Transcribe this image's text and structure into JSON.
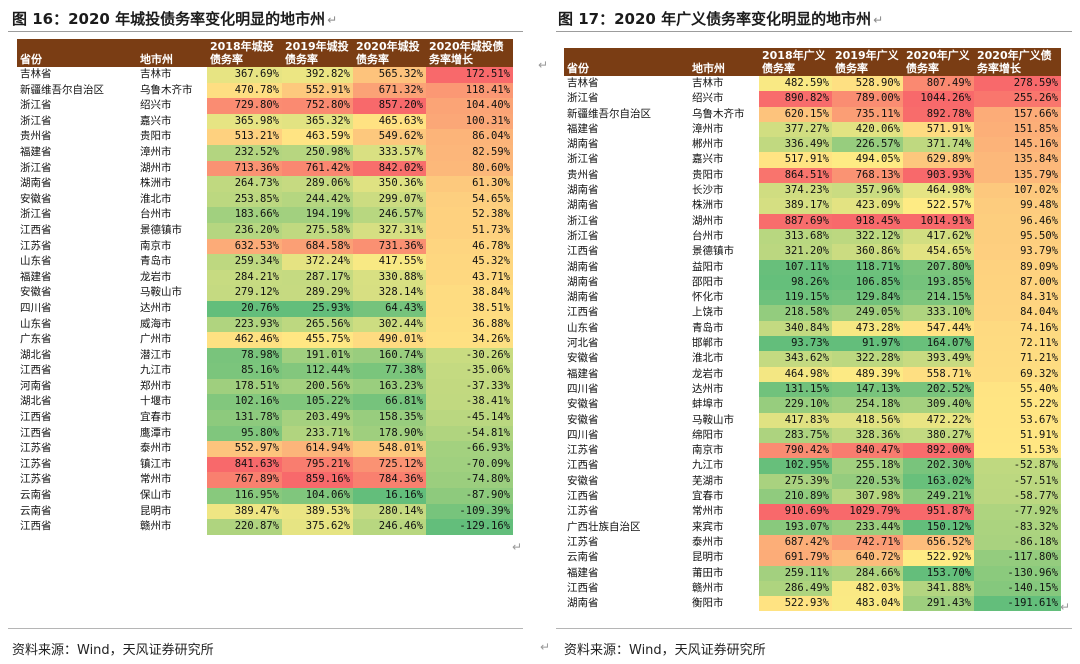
{
  "left": {
    "title": "图 16：2020 年城投债务率变化明显的地市州",
    "source": "资料来源：Wind，天风证券研究所",
    "headers": [
      "省份",
      "地市州",
      "2018年城投债务率",
      "2019年城投债务率",
      "2020年城投债务率",
      "2020年城投债务率增长"
    ],
    "rows": [
      [
        "吉林省",
        "吉林市",
        "367.69%",
        "392.82%",
        "565.32%",
        "172.51%"
      ],
      [
        "新疆维吾尔自治区",
        "乌鲁木齐市",
        "470.78%",
        "552.91%",
        "671.32%",
        "118.41%"
      ],
      [
        "浙江省",
        "绍兴市",
        "729.80%",
        "752.80%",
        "857.20%",
        "104.40%"
      ],
      [
        "浙江省",
        "嘉兴市",
        "365.98%",
        "365.32%",
        "465.63%",
        "100.31%"
      ],
      [
        "贵州省",
        "贵阳市",
        "513.21%",
        "463.59%",
        "549.62%",
        "86.04%"
      ],
      [
        "福建省",
        "漳州市",
        "232.52%",
        "250.98%",
        "333.57%",
        "82.59%"
      ],
      [
        "浙江省",
        "湖州市",
        "713.36%",
        "761.42%",
        "842.02%",
        "80.60%"
      ],
      [
        "湖南省",
        "株洲市",
        "264.73%",
        "289.06%",
        "350.36%",
        "61.30%"
      ],
      [
        "安徽省",
        "淮北市",
        "253.85%",
        "244.42%",
        "299.07%",
        "54.65%"
      ],
      [
        "浙江省",
        "台州市",
        "183.66%",
        "194.19%",
        "246.57%",
        "52.38%"
      ],
      [
        "江西省",
        "景德镇市",
        "236.20%",
        "275.58%",
        "327.31%",
        "51.73%"
      ],
      [
        "江苏省",
        "南京市",
        "632.53%",
        "684.58%",
        "731.36%",
        "46.78%"
      ],
      [
        "山东省",
        "青岛市",
        "259.34%",
        "372.24%",
        "417.55%",
        "45.32%"
      ],
      [
        "福建省",
        "龙岩市",
        "284.21%",
        "287.17%",
        "330.88%",
        "43.71%"
      ],
      [
        "安徽省",
        "马鞍山市",
        "279.12%",
        "289.29%",
        "328.14%",
        "38.84%"
      ],
      [
        "四川省",
        "达州市",
        "20.76%",
        "25.93%",
        "64.43%",
        "38.51%"
      ],
      [
        "山东省",
        "威海市",
        "223.93%",
        "265.56%",
        "302.44%",
        "36.88%"
      ],
      [
        "广东省",
        "广州市",
        "462.46%",
        "455.75%",
        "490.01%",
        "34.26%"
      ],
      [
        "湖北省",
        "潜江市",
        "78.98%",
        "191.01%",
        "160.74%",
        "-30.26%"
      ],
      [
        "江西省",
        "九江市",
        "85.16%",
        "112.44%",
        "77.38%",
        "-35.06%"
      ],
      [
        "河南省",
        "郑州市",
        "178.51%",
        "200.56%",
        "163.23%",
        "-37.33%"
      ],
      [
        "湖北省",
        "十堰市",
        "102.16%",
        "105.22%",
        "66.81%",
        "-38.41%"
      ],
      [
        "江西省",
        "宜春市",
        "131.78%",
        "203.49%",
        "158.35%",
        "-45.14%"
      ],
      [
        "江西省",
        "鹰潭市",
        "95.80%",
        "233.71%",
        "178.90%",
        "-54.81%"
      ],
      [
        "江苏省",
        "泰州市",
        "552.97%",
        "614.94%",
        "548.01%",
        "-66.93%"
      ],
      [
        "江苏省",
        "镇江市",
        "841.63%",
        "795.21%",
        "725.12%",
        "-70.09%"
      ],
      [
        "江苏省",
        "常州市",
        "767.89%",
        "859.16%",
        "784.36%",
        "-74.80%"
      ],
      [
        "云南省",
        "保山市",
        "116.95%",
        "104.06%",
        "16.16%",
        "-87.90%"
      ],
      [
        "云南省",
        "昆明市",
        "389.47%",
        "389.53%",
        "280.14%",
        "-109.39%"
      ],
      [
        "江西省",
        "赣州市",
        "220.87%",
        "375.62%",
        "246.46%",
        "-129.16%"
      ]
    ]
  },
  "right": {
    "title": "图 17：2020 年广义债务率变化明显的地市州",
    "source": "资料来源：Wind，天风证券研究所",
    "headers": [
      "省份",
      "地市州",
      "2018年广义债务率",
      "2019年广义债务率",
      "2020年广义债务率",
      "2020年广义债务率增长"
    ],
    "rows": [
      [
        "吉林省",
        "吉林市",
        "482.59%",
        "528.90%",
        "807.49%",
        "278.59%"
      ],
      [
        "浙江省",
        "绍兴市",
        "890.82%",
        "789.00%",
        "1044.26%",
        "255.26%"
      ],
      [
        "新疆维吾尔自治区",
        "乌鲁木齐市",
        "620.15%",
        "735.11%",
        "892.78%",
        "157.66%"
      ],
      [
        "福建省",
        "漳州市",
        "377.27%",
        "420.06%",
        "571.91%",
        "151.85%"
      ],
      [
        "湖南省",
        "郴州市",
        "336.49%",
        "226.57%",
        "371.74%",
        "145.16%"
      ],
      [
        "浙江省",
        "嘉兴市",
        "517.91%",
        "494.05%",
        "629.89%",
        "135.84%"
      ],
      [
        "贵州省",
        "贵阳市",
        "864.51%",
        "768.13%",
        "903.93%",
        "135.79%"
      ],
      [
        "湖南省",
        "长沙市",
        "374.23%",
        "357.96%",
        "464.98%",
        "107.02%"
      ],
      [
        "湖南省",
        "株洲市",
        "389.17%",
        "423.09%",
        "522.57%",
        "99.48%"
      ],
      [
        "浙江省",
        "湖州市",
        "887.69%",
        "918.45%",
        "1014.91%",
        "96.46%"
      ],
      [
        "浙江省",
        "台州市",
        "313.68%",
        "322.12%",
        "417.62%",
        "95.50%"
      ],
      [
        "江西省",
        "景德镇市",
        "321.20%",
        "360.86%",
        "454.65%",
        "93.79%"
      ],
      [
        "湖南省",
        "益阳市",
        "107.11%",
        "118.71%",
        "207.80%",
        "89.09%"
      ],
      [
        "湖南省",
        "邵阳市",
        "98.26%",
        "106.85%",
        "193.85%",
        "87.00%"
      ],
      [
        "湖南省",
        "怀化市",
        "119.15%",
        "129.84%",
        "214.15%",
        "84.31%"
      ],
      [
        "江西省",
        "上饶市",
        "218.58%",
        "249.05%",
        "333.10%",
        "84.04%"
      ],
      [
        "山东省",
        "青岛市",
        "340.84%",
        "473.28%",
        "547.44%",
        "74.16%"
      ],
      [
        "河北省",
        "邯郸市",
        "93.73%",
        "91.97%",
        "164.07%",
        "72.11%"
      ],
      [
        "安徽省",
        "淮北市",
        "343.62%",
        "322.28%",
        "393.49%",
        "71.21%"
      ],
      [
        "福建省",
        "龙岩市",
        "464.98%",
        "489.39%",
        "558.71%",
        "69.32%"
      ],
      [
        "四川省",
        "达州市",
        "131.15%",
        "147.13%",
        "202.52%",
        "55.40%"
      ],
      [
        "安徽省",
        "蚌埠市",
        "229.10%",
        "254.18%",
        "309.40%",
        "55.22%"
      ],
      [
        "安徽省",
        "马鞍山市",
        "417.83%",
        "418.56%",
        "472.22%",
        "53.67%"
      ],
      [
        "四川省",
        "绵阳市",
        "283.75%",
        "328.36%",
        "380.27%",
        "51.91%"
      ],
      [
        "江苏省",
        "南京市",
        "790.42%",
        "840.47%",
        "892.00%",
        "51.53%"
      ],
      [
        "江西省",
        "九江市",
        "102.95%",
        "255.18%",
        "202.30%",
        "-52.87%"
      ],
      [
        "安徽省",
        "芜湖市",
        "275.39%",
        "220.53%",
        "163.02%",
        "-57.51%"
      ],
      [
        "江西省",
        "宜春市",
        "210.89%",
        "307.98%",
        "249.21%",
        "-58.77%"
      ],
      [
        "江苏省",
        "常州市",
        "910.69%",
        "1029.79%",
        "951.87%",
        "-77.92%"
      ],
      [
        "广西壮族自治区",
        "来宾市",
        "193.07%",
        "233.44%",
        "150.12%",
        "-83.32%"
      ],
      [
        "江苏省",
        "泰州市",
        "687.42%",
        "742.71%",
        "656.52%",
        "-86.18%"
      ],
      [
        "云南省",
        "昆明市",
        "691.79%",
        "640.72%",
        "522.92%",
        "-117.80%"
      ],
      [
        "福建省",
        "莆田市",
        "259.11%",
        "284.66%",
        "153.70%",
        "-130.96%"
      ],
      [
        "江西省",
        "赣州市",
        "286.49%",
        "482.03%",
        "341.88%",
        "-140.15%"
      ],
      [
        "湖南省",
        "衡阳市",
        "522.93%",
        "483.04%",
        "291.43%",
        "-191.61%"
      ]
    ]
  },
  "colors": {
    "header_bg": "#7a3d14",
    "scale_low": "#63be7b",
    "scale_mid": "#ffeb84",
    "scale_high": "#f8696b"
  },
  "paragraph_mark": "↵"
}
